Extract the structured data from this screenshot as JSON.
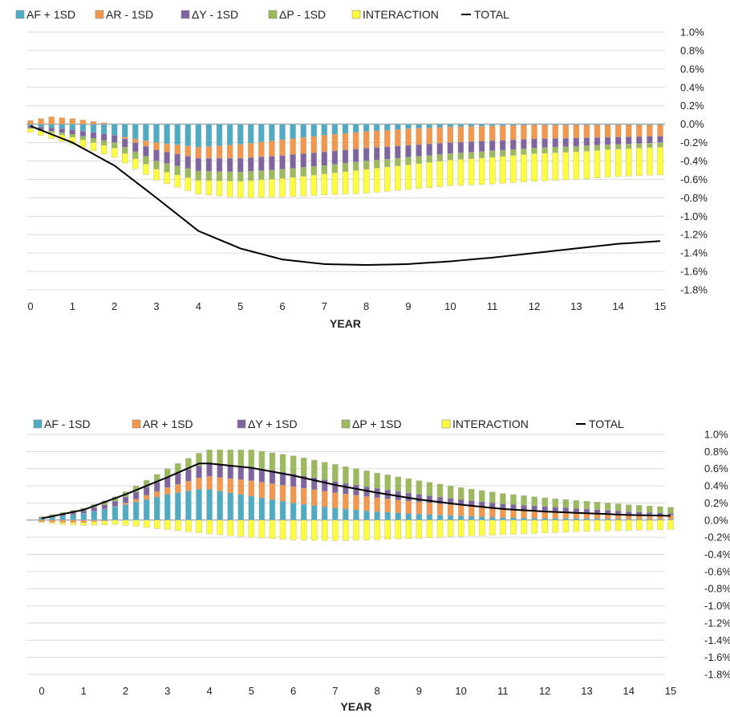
{
  "chart_data": [
    {
      "type": "bar",
      "stacked": true,
      "xlabel": "YEAR",
      "ylim": [
        -0.018,
        0.01
      ],
      "yticks": [
        "1.0%",
        "0.8%",
        "0.6%",
        "0.4%",
        "0.2%",
        "0.0%",
        "-0.2%",
        "-0.4%",
        "-0.6%",
        "-0.8%",
        "-1.0%",
        "-1.2%",
        "-1.4%",
        "-1.6%",
        "-1.8%"
      ],
      "xticks": [
        "0",
        "1",
        "2",
        "3",
        "4",
        "5",
        "6",
        "7",
        "8",
        "9",
        "10",
        "11",
        "12",
        "13",
        "14",
        "15"
      ],
      "grid": true,
      "legend_position": "top",
      "points_per_year": 4,
      "series": [
        {
          "name": "AF + 1SD",
          "color": "#4BACC6",
          "knots": [
            [
              0,
              -0.0002
            ],
            [
              1,
              -0.0006
            ],
            [
              2,
              -0.0012
            ],
            [
              3,
              -0.002
            ],
            [
              4,
              -0.0025
            ],
            [
              5,
              -0.0022
            ],
            [
              6,
              -0.0017
            ],
            [
              7,
              -0.0012
            ],
            [
              8,
              -0.0008
            ],
            [
              9,
              -0.0005
            ],
            [
              10,
              -0.0003
            ],
            [
              11,
              -0.0002
            ],
            [
              12,
              -0.0001
            ],
            [
              13,
              -0.0001
            ],
            [
              14,
              -0.0001
            ],
            [
              15,
              -0.0001
            ]
          ]
        },
        {
          "name": "AR - 1SD",
          "color": "#F79646",
          "knots": [
            [
              0,
              0.0004
            ],
            [
              0.5,
              0.0008
            ],
            [
              1,
              0.0006
            ],
            [
              1.5,
              0.0003
            ],
            [
              2,
              0.0
            ],
            [
              3,
              -0.0008
            ],
            [
              4,
              -0.0012
            ],
            [
              5,
              -0.0015
            ],
            [
              6,
              -0.0017
            ],
            [
              7,
              -0.0018
            ],
            [
              8,
              -0.0018
            ],
            [
              9,
              -0.0018
            ],
            [
              10,
              -0.0017
            ],
            [
              11,
              -0.0016
            ],
            [
              12,
              -0.0015
            ],
            [
              13,
              -0.0014
            ],
            [
              14,
              -0.0013
            ],
            [
              15,
              -0.0012
            ]
          ]
        },
        {
          "name": "ΔY - 1SD",
          "color": "#8064A2",
          "knots": [
            [
              0,
              -0.0002
            ],
            [
              1,
              -0.0005
            ],
            [
              2,
              -0.0008
            ],
            [
              3,
              -0.0012
            ],
            [
              4,
              -0.0014
            ],
            [
              5,
              -0.0015
            ],
            [
              6,
              -0.0015
            ],
            [
              7,
              -0.0015
            ],
            [
              8,
              -0.0014
            ],
            [
              9,
              -0.0013
            ],
            [
              10,
              -0.0012
            ],
            [
              11,
              -0.0011
            ],
            [
              12,
              -0.001
            ],
            [
              13,
              -0.0009
            ],
            [
              14,
              -0.0008
            ],
            [
              15,
              -0.0007
            ]
          ]
        },
        {
          "name": "ΔP - 1SD",
          "color": "#9BBB59",
          "knots": [
            [
              0,
              -0.0001
            ],
            [
              1,
              -0.0003
            ],
            [
              2,
              -0.0006
            ],
            [
              3,
              -0.0009
            ],
            [
              4,
              -0.001
            ],
            [
              5,
              -0.001
            ],
            [
              6,
              -0.001
            ],
            [
              7,
              -0.0009
            ],
            [
              8,
              -0.0009
            ],
            [
              9,
              -0.0008
            ],
            [
              10,
              -0.0007
            ],
            [
              11,
              -0.0007
            ],
            [
              12,
              -0.0006
            ],
            [
              13,
              -0.0006
            ],
            [
              14,
              -0.0005
            ],
            [
              15,
              -0.0005
            ]
          ]
        },
        {
          "name": "INTERACTION",
          "color": "#FFFF33",
          "knots": [
            [
              0,
              -0.0004
            ],
            [
              1,
              -0.0008
            ],
            [
              2,
              -0.001
            ],
            [
              3,
              -0.0012
            ],
            [
              4,
              -0.0015
            ],
            [
              5,
              -0.0018
            ],
            [
              6,
              -0.002
            ],
            [
              7,
              -0.0023
            ],
            [
              8,
              -0.0026
            ],
            [
              9,
              -0.0027
            ],
            [
              10,
              -0.0028
            ],
            [
              11,
              -0.0029
            ],
            [
              12,
              -0.003
            ],
            [
              13,
              -0.003
            ],
            [
              14,
              -0.003
            ],
            [
              15,
              -0.003
            ]
          ]
        }
      ],
      "total": {
        "name": "TOTAL",
        "color": "#000000",
        "knots": [
          [
            0,
            -0.0002
          ],
          [
            1,
            -0.002
          ],
          [
            2,
            -0.0045
          ],
          [
            3,
            -0.008
          ],
          [
            4,
            -0.0116
          ],
          [
            5,
            -0.0135
          ],
          [
            6,
            -0.0147
          ],
          [
            7,
            -0.0152
          ],
          [
            8,
            -0.0153
          ],
          [
            9,
            -0.0152
          ],
          [
            10,
            -0.0149
          ],
          [
            11,
            -0.0145
          ],
          [
            12,
            -0.014
          ],
          [
            13,
            -0.0135
          ],
          [
            14,
            -0.013
          ],
          [
            15,
            -0.0127
          ]
        ]
      }
    },
    {
      "type": "bar",
      "stacked": true,
      "xlabel": "YEAR",
      "ylim": [
        -0.018,
        0.01
      ],
      "yticks": [
        "1.0%",
        "0.8%",
        "0.6%",
        "0.4%",
        "0.2%",
        "0.0%",
        "-0.2%",
        "-0.4%",
        "-0.6%",
        "-0.8%",
        "-1.0%",
        "-1.2%",
        "-1.4%",
        "-1.6%",
        "-1.8%"
      ],
      "xticks": [
        "0",
        "1",
        "2",
        "3",
        "4",
        "5",
        "6",
        "7",
        "8",
        "9",
        "10",
        "11",
        "12",
        "13",
        "14",
        "15"
      ],
      "grid": true,
      "legend_position": "top",
      "points_per_year": 4,
      "series": [
        {
          "name": "AF - 1SD",
          "color": "#4BACC6",
          "knots": [
            [
              0,
              0.0002
            ],
            [
              1,
              0.0008
            ],
            [
              2,
              0.0018
            ],
            [
              3,
              0.003
            ],
            [
              3.75,
              0.0036
            ],
            [
              4,
              0.0036
            ],
            [
              5,
              0.0028
            ],
            [
              6,
              0.002
            ],
            [
              7,
              0.0014
            ],
            [
              8,
              0.001
            ],
            [
              9,
              0.0007
            ],
            [
              10,
              0.0005
            ],
            [
              11,
              0.0003
            ],
            [
              12,
              0.0002
            ],
            [
              13,
              0.0002
            ],
            [
              14,
              0.0001
            ],
            [
              15,
              0.0001
            ]
          ]
        },
        {
          "name": "AR + 1SD",
          "color": "#F79646",
          "knots": [
            [
              0,
              -0.0002
            ],
            [
              0.5,
              -0.0003
            ],
            [
              1,
              -0.0003
            ],
            [
              1.5,
              -0.0001
            ],
            [
              2,
              0.0002
            ],
            [
              3,
              0.0008
            ],
            [
              4,
              0.0015
            ],
            [
              5,
              0.0018
            ],
            [
              6,
              0.0019
            ],
            [
              7,
              0.0018
            ],
            [
              8,
              0.0016
            ],
            [
              9,
              0.0014
            ],
            [
              10,
              0.0012
            ],
            [
              11,
              0.001
            ],
            [
              12,
              0.0009
            ],
            [
              13,
              0.0007
            ],
            [
              14,
              0.0006
            ],
            [
              15,
              0.0005
            ]
          ]
        },
        {
          "name": "ΔY + 1SD",
          "color": "#8064A2",
          "knots": [
            [
              0,
              0.0001
            ],
            [
              1,
              0.0003
            ],
            [
              2,
              0.0007
            ],
            [
              3,
              0.0012
            ],
            [
              4,
              0.0015
            ],
            [
              5,
              0.0016
            ],
            [
              6,
              0.0015
            ],
            [
              7,
              0.0013
            ],
            [
              8,
              0.0011
            ],
            [
              9,
              0.0009
            ],
            [
              10,
              0.0007
            ],
            [
              11,
              0.0006
            ],
            [
              12,
              0.0005
            ],
            [
              13,
              0.0004
            ],
            [
              14,
              0.0003
            ],
            [
              15,
              0.0002
            ]
          ]
        },
        {
          "name": "ΔP + 1SD",
          "color": "#9BBB59",
          "knots": [
            [
              0,
              0.0001
            ],
            [
              1,
              0.0003
            ],
            [
              2,
              0.0006
            ],
            [
              3,
              0.001
            ],
            [
              4,
              0.0016
            ],
            [
              5,
              0.002
            ],
            [
              6,
              0.0021
            ],
            [
              7,
              0.002
            ],
            [
              8,
              0.0018
            ],
            [
              9,
              0.0016
            ],
            [
              10,
              0.0014
            ],
            [
              11,
              0.0012
            ],
            [
              12,
              0.001
            ],
            [
              13,
              0.0009
            ],
            [
              14,
              0.0008
            ],
            [
              15,
              0.0007
            ]
          ]
        },
        {
          "name": "INTERACTION",
          "color": "#FFFF33",
          "knots": [
            [
              0,
              -0.0001
            ],
            [
              1,
              -0.0003
            ],
            [
              2,
              -0.0006
            ],
            [
              3,
              -0.0011
            ],
            [
              4,
              -0.0016
            ],
            [
              5,
              -0.002
            ],
            [
              6,
              -0.0023
            ],
            [
              7,
              -0.0024
            ],
            [
              8,
              -0.0023
            ],
            [
              9,
              -0.0021
            ],
            [
              10,
              -0.0019
            ],
            [
              11,
              -0.0017
            ],
            [
              12,
              -0.0015
            ],
            [
              13,
              -0.0013
            ],
            [
              14,
              -0.0012
            ],
            [
              15,
              -0.0011
            ]
          ]
        }
      ],
      "total": {
        "name": "TOTAL",
        "color": "#000000",
        "knots": [
          [
            0,
            0.0002
          ],
          [
            1,
            0.0012
          ],
          [
            2,
            0.003
          ],
          [
            3,
            0.005
          ],
          [
            3.75,
            0.0066
          ],
          [
            4,
            0.0066
          ],
          [
            5,
            0.0061
          ],
          [
            6,
            0.0052
          ],
          [
            7,
            0.0041
          ],
          [
            8,
            0.0032
          ],
          [
            9,
            0.0024
          ],
          [
            10,
            0.0018
          ],
          [
            11,
            0.0013
          ],
          [
            12,
            0.001
          ],
          [
            13,
            0.0008
          ],
          [
            14,
            0.0006
          ],
          [
            15,
            0.0005
          ]
        ]
      }
    }
  ]
}
